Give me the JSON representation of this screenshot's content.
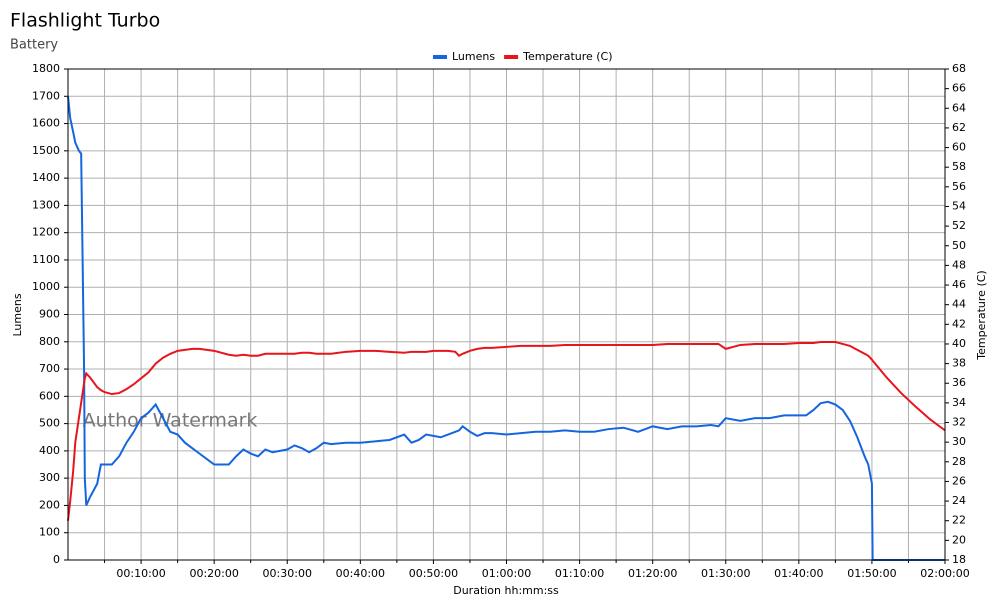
{
  "chart_data": {
    "type": "line",
    "title": "Flashlight Turbo",
    "subtitle": "Battery",
    "x_label": "Duration hh:mm:ss",
    "y_label": "Lumens",
    "y2_label": "Temperature (C)",
    "annotations": [
      "Author Watermark"
    ],
    "x": [
      0,
      0.3,
      0.7,
      1,
      1.5,
      1.8,
      2,
      2.2,
      2.3,
      2.5,
      3,
      4,
      4.5,
      5,
      6,
      7,
      8,
      9,
      10,
      11,
      12,
      13,
      14,
      15,
      16,
      17,
      18,
      19,
      20,
      22,
      23,
      24,
      25,
      26,
      27,
      28,
      29,
      30,
      31,
      32,
      33,
      34,
      35,
      36,
      38,
      40,
      42,
      44,
      46,
      47,
      48,
      49,
      50,
      51,
      52,
      53,
      53.5,
      54,
      55,
      56,
      57,
      58,
      60,
      62,
      64,
      66,
      68,
      70,
      72,
      74,
      76,
      78,
      80,
      82,
      84,
      86,
      88,
      89,
      90,
      92,
      94,
      96,
      98,
      100,
      101,
      102,
      103,
      104,
      105,
      106,
      107,
      108,
      109,
      109.5,
      110,
      110.1,
      112,
      114,
      116,
      118,
      120
    ],
    "series": [
      {
        "name": "Lumens",
        "color": "#1565e0",
        "values": [
          1700,
          1620,
          1570,
          1530,
          1500,
          1490,
          1100,
          700,
          300,
          200,
          230,
          280,
          350,
          350,
          350,
          380,
          430,
          470,
          520,
          540,
          570,
          520,
          470,
          460,
          430,
          410,
          390,
          370,
          350,
          350,
          380,
          405,
          390,
          380,
          405,
          395,
          400,
          405,
          420,
          410,
          395,
          410,
          430,
          425,
          430,
          430,
          435,
          440,
          460,
          430,
          440,
          460,
          455,
          450,
          460,
          470,
          475,
          490,
          470,
          455,
          465,
          465,
          460,
          465,
          470,
          470,
          475,
          470,
          470,
          480,
          485,
          470,
          490,
          480,
          490,
          490,
          495,
          490,
          520,
          510,
          520,
          520,
          530,
          530,
          530,
          550,
          575,
          580,
          570,
          550,
          510,
          450,
          380,
          350,
          280,
          0,
          0,
          0,
          0,
          0,
          0
        ]
      },
      {
        "name": "Temperature (C)",
        "color": "#e8141c",
        "axis": "y2",
        "values": [
          22,
          24,
          27,
          30,
          32.5,
          34,
          35,
          36,
          36.5,
          37,
          36.6,
          35.6,
          35.3,
          35.1,
          34.9,
          35,
          35.4,
          35.9,
          36.5,
          37.1,
          38,
          38.6,
          39,
          39.3,
          39.4,
          39.5,
          39.5,
          39.4,
          39.3,
          38.9,
          38.8,
          38.9,
          38.8,
          38.8,
          39,
          39,
          39,
          39,
          39,
          39.1,
          39.1,
          39,
          39,
          39,
          39.2,
          39.3,
          39.3,
          39.2,
          39.1,
          39.2,
          39.2,
          39.2,
          39.3,
          39.3,
          39.3,
          39.2,
          38.8,
          39,
          39.3,
          39.5,
          39.6,
          39.6,
          39.7,
          39.8,
          39.8,
          39.8,
          39.9,
          39.9,
          39.9,
          39.9,
          39.9,
          39.9,
          39.9,
          40,
          40,
          40,
          40,
          40,
          39.5,
          39.9,
          40,
          40,
          40,
          40.1,
          40.1,
          40.1,
          40.2,
          40.2,
          40.2,
          40,
          39.8,
          39.4,
          39,
          38.8,
          38.4,
          38.3,
          36.6,
          35,
          33.6,
          32.3,
          31.2
        ]
      }
    ],
    "xlim": [
      0,
      120
    ],
    "xticks": [
      {
        "value": 10,
        "label": "00:10:00"
      },
      {
        "value": 20,
        "label": "00:20:00"
      },
      {
        "value": 30,
        "label": "00:30:00"
      },
      {
        "value": 40,
        "label": "00:40:00"
      },
      {
        "value": 50,
        "label": "00:50:00"
      },
      {
        "value": 60,
        "label": "01:00:00"
      },
      {
        "value": 70,
        "label": "01:10:00"
      },
      {
        "value": 80,
        "label": "01:20:00"
      },
      {
        "value": 90,
        "label": "01:30:00"
      },
      {
        "value": 100,
        "label": "01:40:00"
      },
      {
        "value": 110,
        "label": "01:50:00"
      },
      {
        "value": 120,
        "label": "02:00:00"
      }
    ],
    "xminorticks": [
      5,
      15,
      25,
      35,
      45,
      55,
      65,
      75,
      85,
      95,
      105,
      115
    ],
    "ylim": [
      0,
      1800
    ],
    "yticks": [
      0,
      100,
      200,
      300,
      400,
      500,
      600,
      700,
      800,
      900,
      1000,
      1100,
      1200,
      1300,
      1400,
      1500,
      1600,
      1700,
      1800
    ],
    "y2lim": [
      18,
      68
    ],
    "y2ticks": [
      18,
      20,
      22,
      24,
      26,
      28,
      30,
      32,
      34,
      36,
      38,
      40,
      42,
      44,
      46,
      48,
      50,
      52,
      54,
      56,
      58,
      60,
      62,
      64,
      66,
      68
    ],
    "grid": true,
    "legend": "top"
  }
}
